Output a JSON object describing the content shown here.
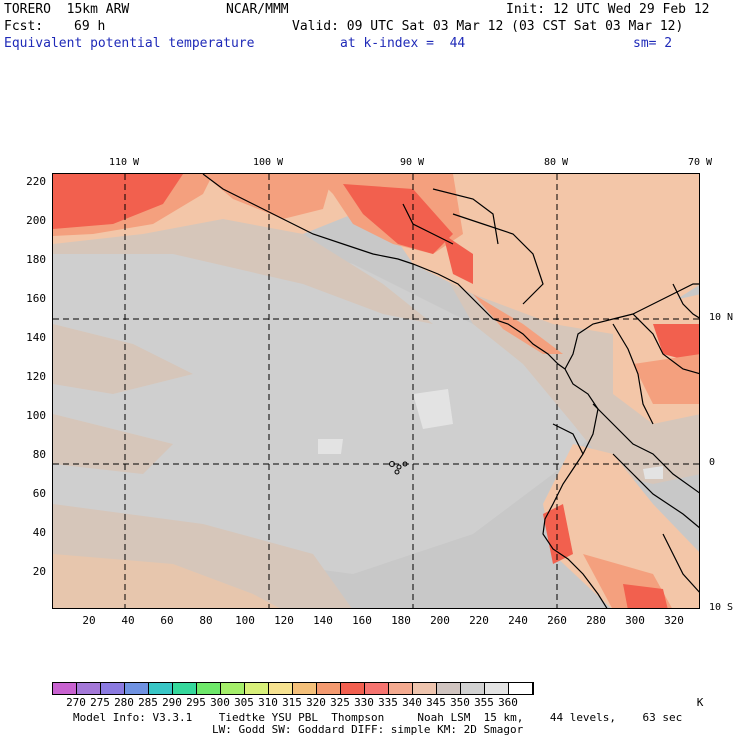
{
  "header": {
    "model": "TORERO  15km ARW",
    "org": "NCAR/MMM",
    "init": "Init: 12 UTC Wed 29 Feb 12",
    "fcst_label": "Fcst:",
    "fcst_value": "69 h",
    "valid": "Valid: 09 UTC Sat 03 Mar 12 (03 CST Sat 03 Mar 12)",
    "field": "Equivalent potential temperature",
    "level": "at k-index =  44",
    "smoothing": "sm= 2"
  },
  "map": {
    "lon_labels": [
      "110 W",
      "100 W",
      "90 W",
      "80 W",
      "70 W"
    ],
    "lat_labels": [
      "10 N",
      "0",
      "10 S"
    ],
    "y_ticks": [
      "220",
      "200",
      "180",
      "160",
      "140",
      "120",
      "100",
      "80",
      "60",
      "40",
      "20"
    ],
    "x_ticks": [
      "20",
      "40",
      "60",
      "80",
      "100",
      "120",
      "140",
      "160",
      "180",
      "200",
      "220",
      "240",
      "260",
      "280",
      "300",
      "320"
    ],
    "colors": {
      "sea_base": "#c8c8c8",
      "warm_light": "#d6c6ba",
      "peach": "#f3c6a8",
      "salmon": "#f4a07e",
      "red": "#f2604e",
      "light_gray": "#e3e3e3",
      "coast": "#000000"
    }
  },
  "colorbar": {
    "labels": [
      "270",
      "275",
      "280",
      "285",
      "290",
      "295",
      "300",
      "305",
      "310",
      "315",
      "320",
      "325",
      "330",
      "335",
      "340",
      "345",
      "350",
      "355",
      "360"
    ],
    "unit": "K",
    "colors": [
      "#c862d0",
      "#a478d8",
      "#8b7ae0",
      "#6f92e2",
      "#38c6c6",
      "#35d89c",
      "#6ee86a",
      "#a4ee6a",
      "#d8f07a",
      "#f6e290",
      "#f4c07a",
      "#f49a70",
      "#f26050",
      "#f67470",
      "#f4aa90",
      "#eec4ae",
      "#d0c4c0",
      "#d2d2d2",
      "#e4e4e4",
      "#ffffff"
    ]
  },
  "footer": {
    "line1": "Model Info: V3.3.1    Tiedtke YSU PBL  Thompson     Noah LSM  15 km,    44 levels,    63 sec",
    "line2": "LW: Godd SW: Goddard DIFF: simple KM: 2D Smagor"
  }
}
